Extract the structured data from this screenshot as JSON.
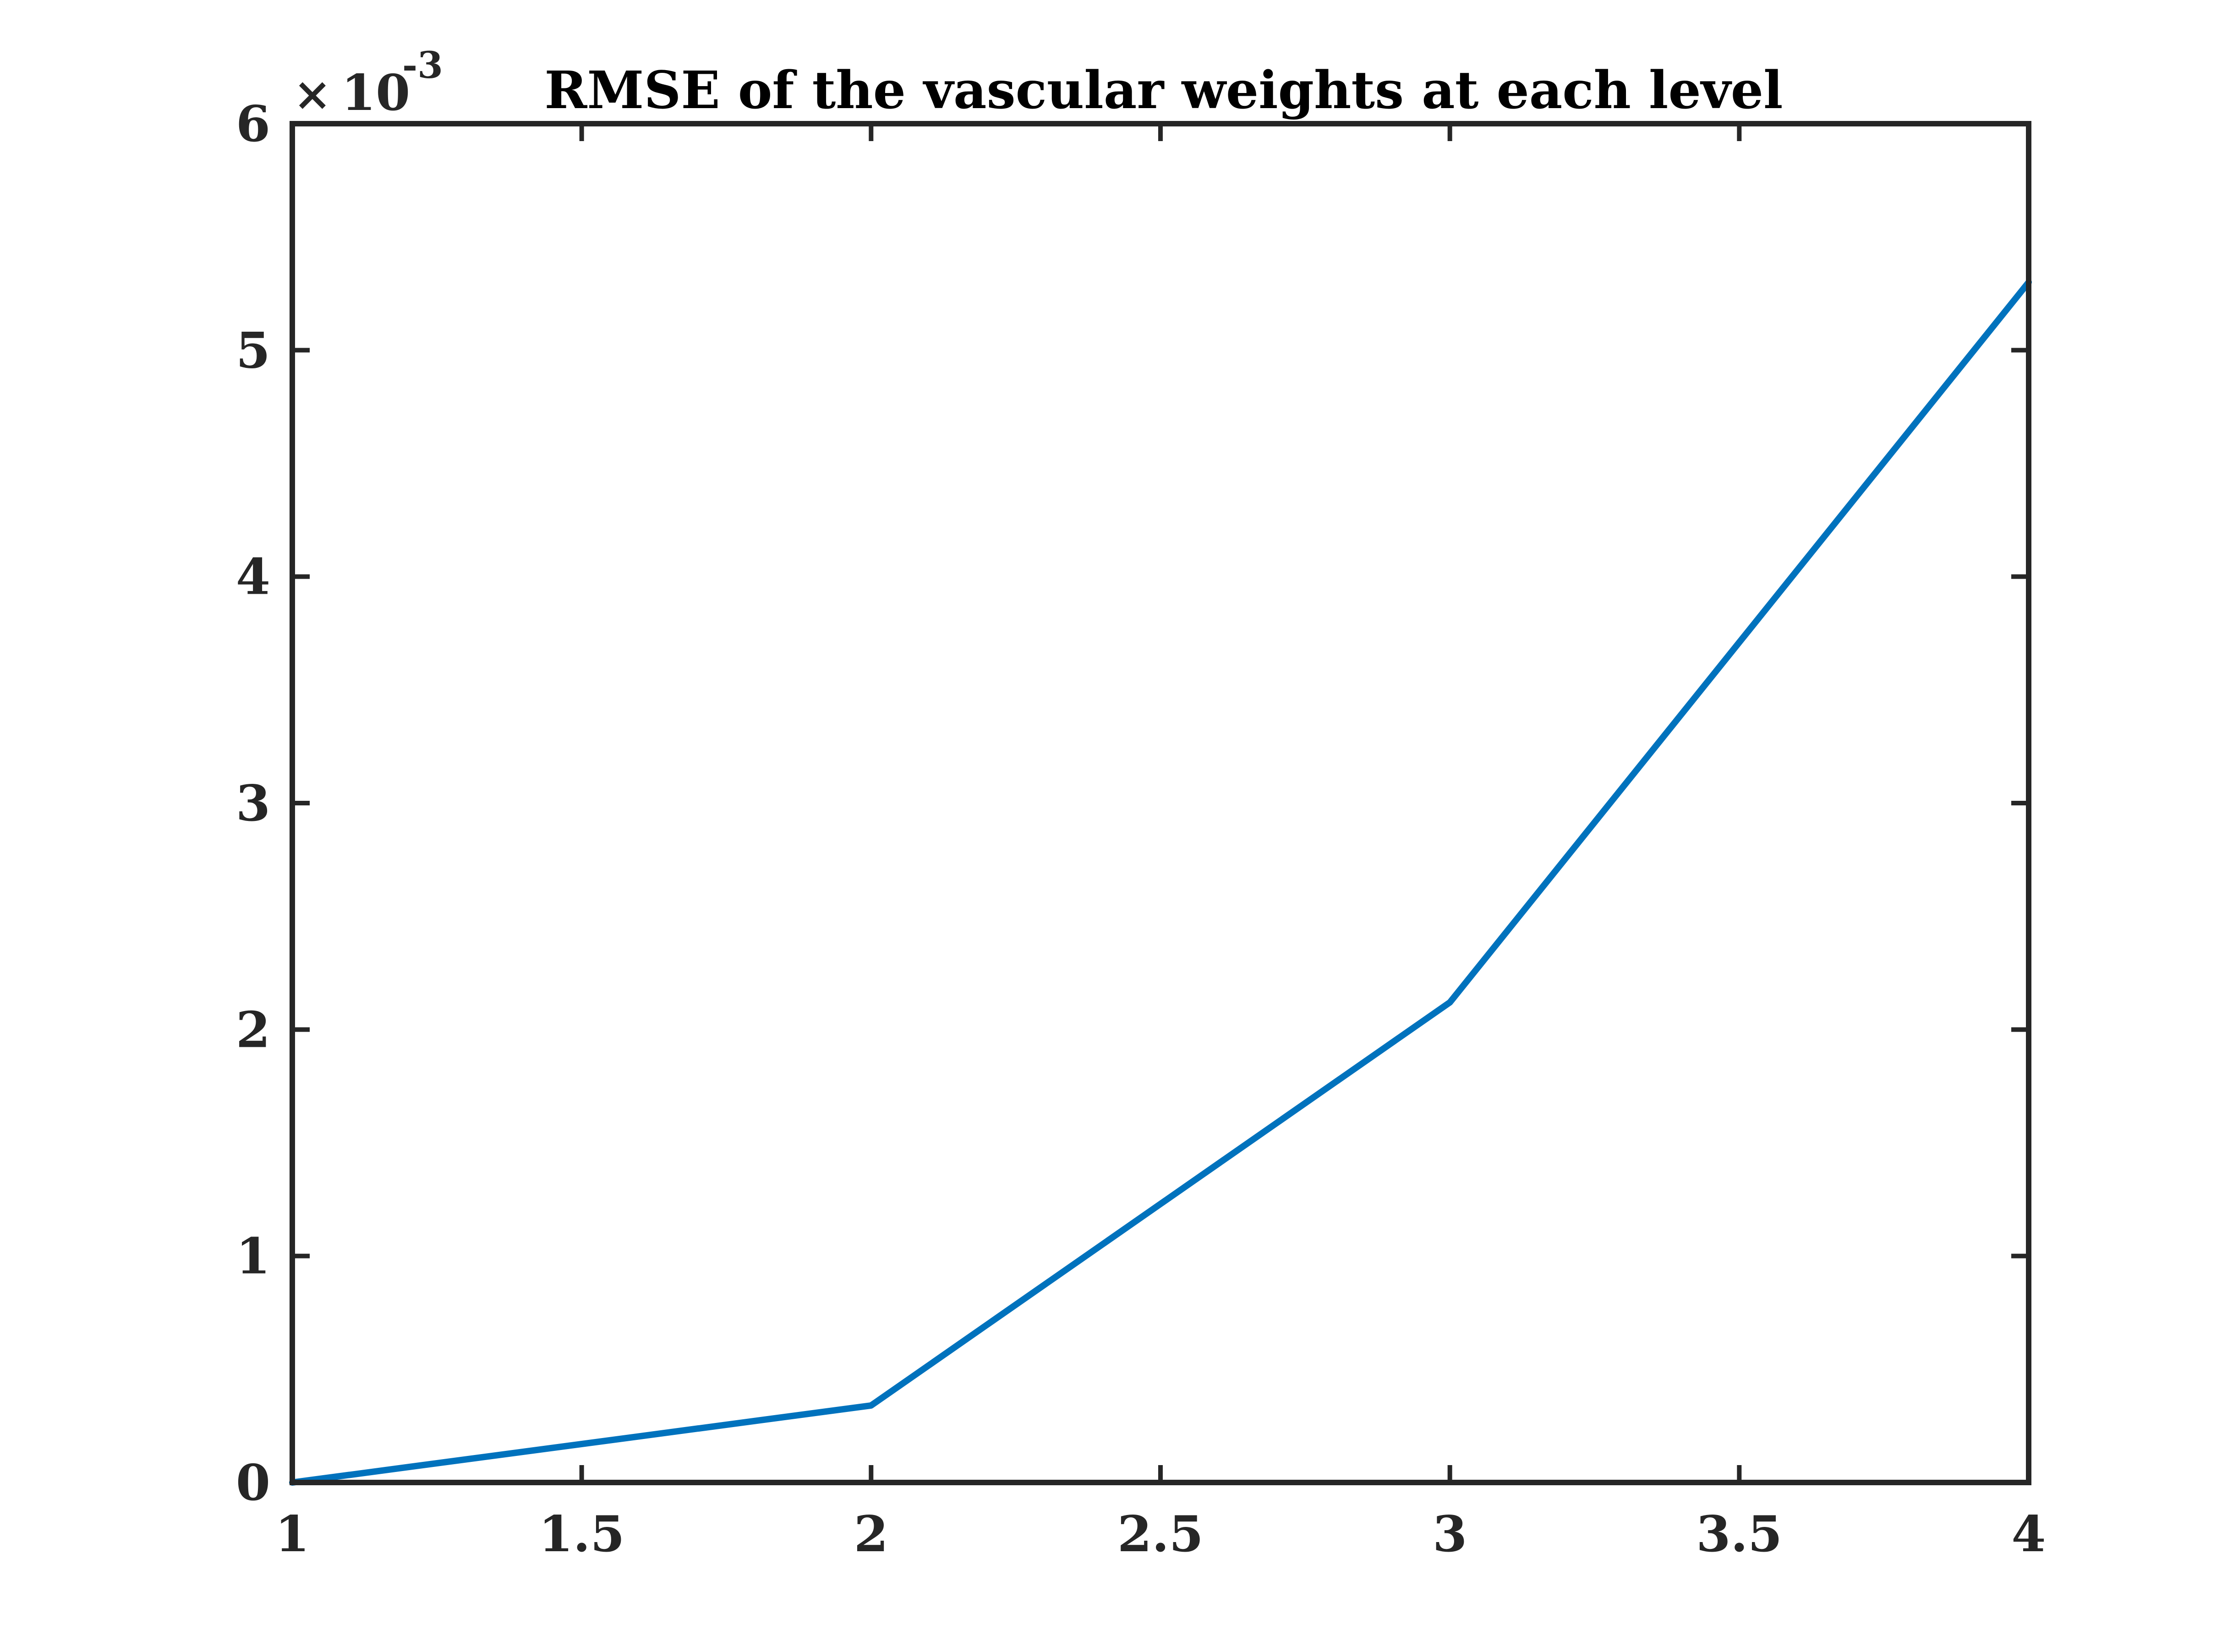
{
  "chart_data": {
    "type": "line",
    "title": "RMSE of the vascular weights at each level",
    "xlabel": "",
    "ylabel": "",
    "xlim": [
      1,
      4
    ],
    "ylim": [
      0,
      0.006
    ],
    "y_exponent_label": {
      "times": "×",
      "base": "10",
      "exponent": "-3"
    },
    "x_ticks": [
      1,
      1.5,
      2,
      2.5,
      3,
      3.5,
      4
    ],
    "x_tick_labels": [
      "1",
      "1.5",
      "2",
      "2.5",
      "3",
      "3.5",
      "4"
    ],
    "y_ticks": [
      0,
      0.001,
      0.002,
      0.003,
      0.004,
      0.005,
      0.006
    ],
    "y_tick_labels": [
      "0",
      "1",
      "2",
      "3",
      "4",
      "5",
      "6"
    ],
    "grid": false,
    "series": [
      {
        "x": [
          1,
          2,
          3,
          4
        ],
        "y": [
          0.0,
          0.00034,
          0.00212,
          0.0053
        ]
      }
    ],
    "colors": {
      "line": "#0072BD",
      "axes": "#262626",
      "title": "#000000"
    }
  }
}
